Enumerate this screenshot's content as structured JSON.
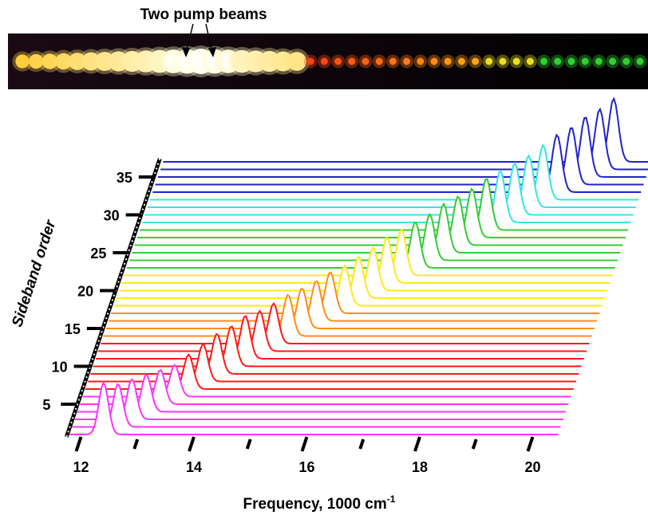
{
  "chart_data": {
    "type": "waterfall",
    "annotation": "Two pump beams",
    "y_label": "Sideband order",
    "x_label": {
      "text": "Frequency, 1000 cm",
      "superscript": "-1"
    },
    "xlim": [
      11.8,
      20.45
    ],
    "xticks": [
      12,
      14,
      16,
      18,
      20
    ],
    "minor_xticks": [
      13,
      15,
      17,
      19
    ],
    "ylim": [
      1,
      37
    ],
    "yticks": [
      5,
      10,
      15,
      20,
      25,
      30,
      35
    ],
    "centers": [
      12.4,
      12.61,
      12.81,
      13.02,
      13.22,
      13.43,
      13.63,
      13.84,
      14.04,
      14.25,
      14.45,
      14.66,
      14.86,
      15.07,
      15.27,
      15.48,
      15.68,
      15.89,
      16.09,
      16.3,
      16.5,
      16.71,
      16.91,
      17.12,
      17.32,
      17.53,
      17.73,
      17.94,
      18.14,
      18.35,
      18.55,
      18.76,
      18.96,
      19.17,
      19.37,
      19.58,
      19.78
    ],
    "heights": [
      0.9,
      0.75,
      0.7,
      0.65,
      0.6,
      0.55,
      0.6,
      0.65,
      0.7,
      0.7,
      0.75,
      0.7,
      0.7,
      0.72,
      0.7,
      0.7,
      0.72,
      0.7,
      0.72,
      0.75,
      0.8,
      0.8,
      0.8,
      0.8,
      0.85,
      0.85,
      0.85,
      0.9,
      0.9,
      0.9,
      0.9,
      0.95,
      1.0,
      1.0,
      1.05,
      1.05,
      1.1
    ],
    "colors": [
      "#ff33ff",
      "#ff33ff",
      "#ff33ff",
      "#ff33ff",
      "#ff33ff",
      "#ff33ff",
      "#ff1a1a",
      "#ff1a1a",
      "#ff1a1a",
      "#ff1a1a",
      "#ff1a1a",
      "#ff1a1a",
      "#ff1a1a",
      "#ff8c1a",
      "#ff8c1a",
      "#ff8c1a",
      "#ff8c1a",
      "#ffe81a",
      "#ffe81a",
      "#ffe81a",
      "#ffe81a",
      "#ffe81a",
      "#33cc33",
      "#33cc33",
      "#33cc33",
      "#33cc33",
      "#33cc33",
      "#33cc33",
      "#33e6e6",
      "#33e6e6",
      "#33e6e6",
      "#33e6e6",
      "#2222cc",
      "#2222cc",
      "#2222cc",
      "#2222cc",
      "#2222cc"
    ]
  }
}
